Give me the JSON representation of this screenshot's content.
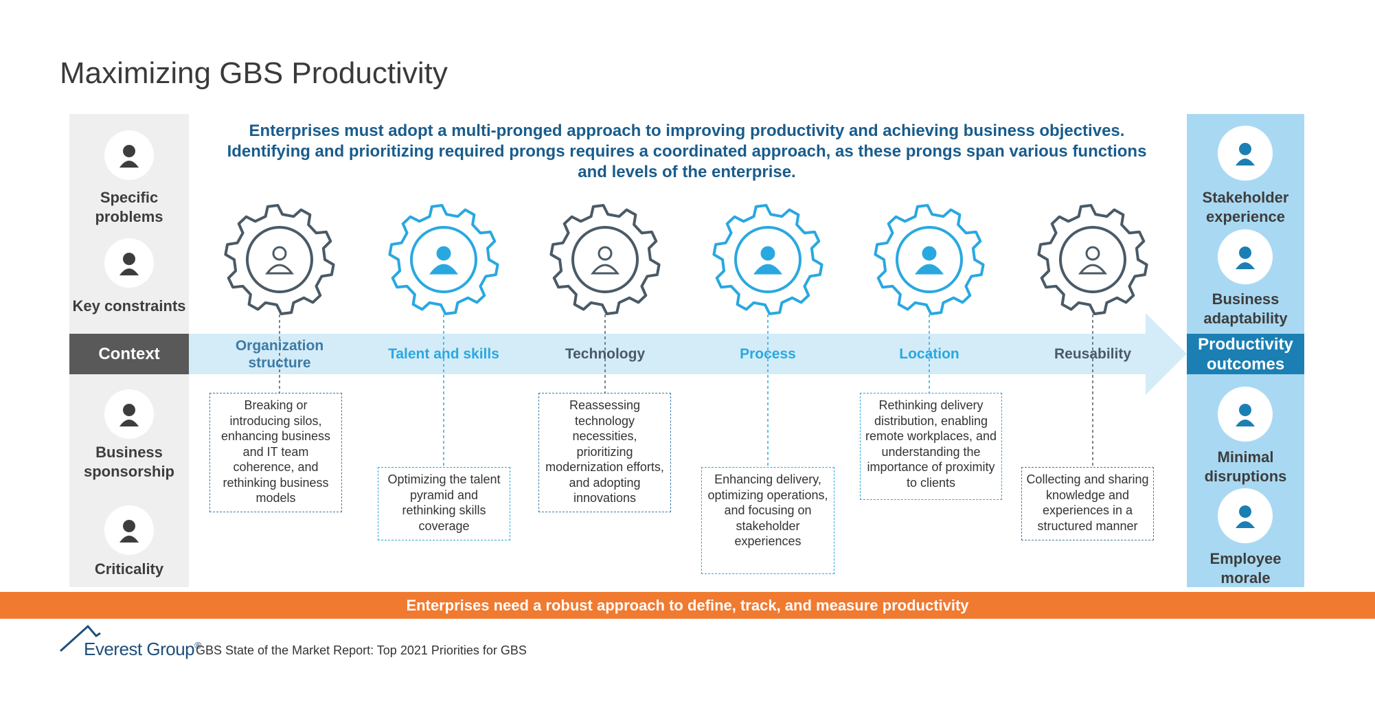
{
  "title": "Maximizing GBS Productivity",
  "intro": "Enterprises must adopt a multi-pronged approach to improving productivity and achieving business objectives. Identifying and prioritizing required prongs requires a coordinated approach, as these prongs span various functions and levels of the enterprise.",
  "left_items": [
    "Specific problems",
    "Key constraints",
    "Business sponsorship",
    "Criticality"
  ],
  "context_label": "Context",
  "prongs": [
    {
      "label": "Organization structure",
      "description": "Breaking or introducing silos, enhancing business and IT team coherence, and rethinking business models"
    },
    {
      "label": "Talent and skills",
      "description": "Optimizing the talent pyramid and rethinking skills coverage"
    },
    {
      "label": "Technology",
      "description": "Reassessing technology necessities, prioritizing modernization efforts, and adopting innovations"
    },
    {
      "label": "Process",
      "description": "Enhancing delivery, optimizing operations, and focusing on stakeholder experiences"
    },
    {
      "label": "Location",
      "description": "Rethinking delivery distribution, enabling remote workplaces, and understanding the importance of proximity to clients"
    },
    {
      "label": "Reusability",
      "description": "Collecting and sharing knowledge and experiences in a structured manner"
    }
  ],
  "outcomes_label": "Productivity outcomes",
  "right_items": [
    "Stakeholder experience",
    "Business adaptability",
    "Minimal disruptions",
    "Employee morale"
  ],
  "banner": "Enterprises need a robust approach to define, track, and measure productivity",
  "footer": {
    "brand": "Everest Group",
    "registered": "®",
    "source": "GBS State of the Market Report: Top 2021 Priorities for GBS"
  }
}
